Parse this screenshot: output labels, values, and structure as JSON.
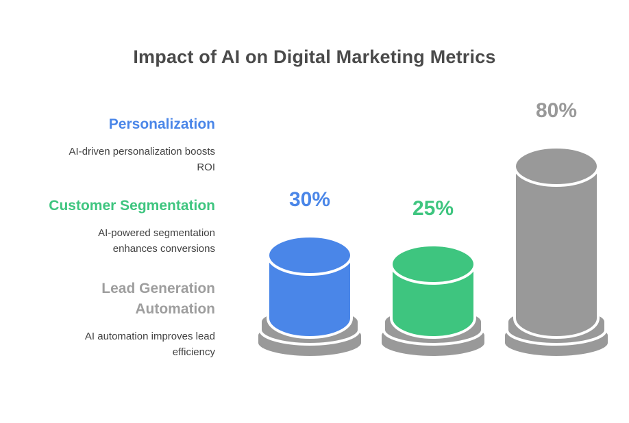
{
  "title": "Impact of AI on Digital Marketing Metrics",
  "legend": {
    "items": [
      {
        "heading_lines": [
          "Personalization"
        ],
        "description_lines": [
          "AI-driven personalization boosts",
          "ROI"
        ],
        "color": "#4a86e8"
      },
      {
        "heading_lines": [
          "Customer Segmentation"
        ],
        "description_lines": [
          "AI-powered segmentation",
          "enhances conversions"
        ],
        "color": "#3ec57f"
      },
      {
        "heading_lines": [
          "Lead Generation",
          "Automation"
        ],
        "description_lines": [
          "AI automation improves lead",
          "efficiency"
        ],
        "color": "#9e9e9e"
      }
    ]
  },
  "chart_data": {
    "type": "bar",
    "style": "3d-cylinder-pictorial",
    "title": "Impact of AI on Digital Marketing Metrics",
    "categories": [
      "Personalization",
      "Customer Segmentation",
      "Lead Generation Automation"
    ],
    "values": [
      30,
      25,
      80
    ],
    "value_labels": [
      "30%",
      "25%",
      "80%"
    ],
    "unit": "%",
    "ylim": [
      0,
      100
    ],
    "grid": false,
    "legend_position": "left",
    "bar_colors": [
      "#4a86e8",
      "#3ec57f",
      "#999999"
    ],
    "pedestal_color": "#999999",
    "separator_color": "#ffffff"
  }
}
